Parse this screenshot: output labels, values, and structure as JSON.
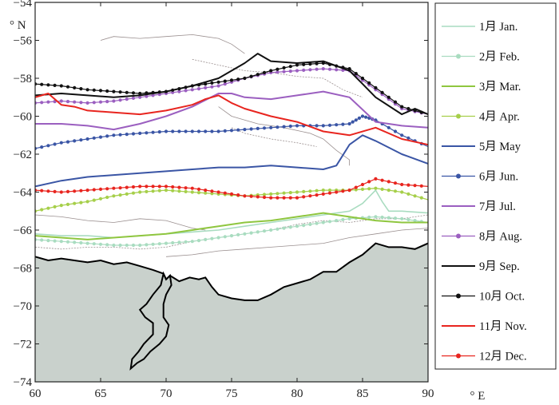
{
  "chart_data": {
    "type": "line",
    "title": "",
    "x_unit": "° E",
    "y_unit": "° N",
    "xlim": [
      60,
      90
    ],
    "ylim": [
      -74,
      -54
    ],
    "x_ticks": [
      "60",
      "65",
      "70",
      "75",
      "80",
      "85",
      "90"
    ],
    "y_ticks": [
      "-54",
      "-56",
      "-58",
      "-60",
      "-62",
      "-64",
      "-66",
      "-68",
      "-70",
      "-72",
      "-74"
    ],
    "legend_position": "right",
    "land_color": "#c9d1cc",
    "coast_color": "#000000",
    "series": [
      {
        "name": "1月 Jan.",
        "color": "#a9dcc0",
        "marker": false,
        "width": 1.6,
        "x": [
          60,
          62,
          64,
          66,
          68,
          70,
          72,
          74,
          76,
          78,
          80,
          82,
          84,
          85,
          86,
          86.5,
          87,
          88,
          90
        ],
        "y": [
          -66.2,
          -66.3,
          -66.3,
          -66.4,
          -66.3,
          -66.2,
          -66.1,
          -66.0,
          -65.8,
          -65.6,
          -65.4,
          -65.2,
          -65.0,
          -64.6,
          -63.9,
          -64.5,
          -65.0,
          -65.0,
          -65.1
        ]
      },
      {
        "name": "2月 Feb.",
        "color": "#a9dcc0",
        "marker": true,
        "width": 1.2,
        "x": [
          60,
          62,
          64,
          66,
          68,
          70,
          72,
          74,
          76,
          78,
          80,
          82,
          84,
          86,
          88,
          90
        ],
        "y": [
          -66.5,
          -66.6,
          -66.7,
          -66.8,
          -66.8,
          -66.7,
          -66.6,
          -66.4,
          -66.2,
          -66.0,
          -65.8,
          -65.6,
          -65.4,
          -65.3,
          -65.4,
          -65.6
        ]
      },
      {
        "name": "3月 Mar.",
        "color": "#8fc63f",
        "marker": false,
        "width": 2,
        "x": [
          60,
          62,
          64,
          66,
          68,
          70,
          72,
          74,
          76,
          78,
          80,
          82,
          84,
          86,
          88,
          90
        ],
        "y": [
          -66.3,
          -66.4,
          -66.5,
          -66.4,
          -66.3,
          -66.2,
          -66.0,
          -65.8,
          -65.6,
          -65.5,
          -65.3,
          -65.1,
          -65.3,
          -65.5,
          -65.6,
          -65.6
        ]
      },
      {
        "name": "4月 Apr.",
        "color": "#a6cf4a",
        "marker": true,
        "width": 1.3,
        "x": [
          60,
          62,
          64,
          66,
          68,
          70,
          72,
          74,
          76,
          78,
          80,
          82,
          84,
          86,
          88,
          90
        ],
        "y": [
          -65.0,
          -64.7,
          -64.5,
          -64.2,
          -64.0,
          -63.9,
          -64.0,
          -64.1,
          -64.2,
          -64.1,
          -64.0,
          -63.9,
          -63.9,
          -63.8,
          -64.0,
          -64.4
        ]
      },
      {
        "name": "5月 May",
        "color": "#3a55a5",
        "marker": false,
        "width": 2,
        "x": [
          60,
          62,
          64,
          66,
          68,
          70,
          72,
          74,
          76,
          78,
          80,
          82,
          83,
          84,
          85,
          86,
          88,
          90
        ],
        "y": [
          -63.7,
          -63.4,
          -63.2,
          -63.1,
          -63.0,
          -62.9,
          -62.8,
          -62.7,
          -62.7,
          -62.6,
          -62.7,
          -62.8,
          -62.6,
          -61.5,
          -61.0,
          -61.3,
          -62.0,
          -62.5
        ]
      },
      {
        "name": "6月 Jun.",
        "color": "#3a55a5",
        "marker": true,
        "width": 1.2,
        "x": [
          60,
          62,
          64,
          66,
          68,
          70,
          72,
          74,
          76,
          78,
          80,
          82,
          84,
          85,
          86,
          88,
          90
        ],
        "y": [
          -61.7,
          -61.4,
          -61.2,
          -61.0,
          -60.9,
          -60.8,
          -60.8,
          -60.8,
          -60.7,
          -60.6,
          -60.5,
          -60.5,
          -60.4,
          -60.0,
          -60.2,
          -61.0,
          -61.6
        ]
      },
      {
        "name": "7月 Jul.",
        "color": "#9b5fc0",
        "marker": false,
        "width": 2,
        "x": [
          60,
          62,
          64,
          66,
          68,
          70,
          72,
          74,
          75,
          76,
          78,
          80,
          82,
          84,
          86,
          88,
          90
        ],
        "y": [
          -60.4,
          -60.4,
          -60.5,
          -60.7,
          -60.4,
          -60.0,
          -59.5,
          -58.8,
          -58.8,
          -59.0,
          -59.1,
          -58.9,
          -58.7,
          -59.0,
          -60.3,
          -60.5,
          -60.6
        ]
      },
      {
        "name": "8月 Aug.",
        "color": "#9b5fc0",
        "marker": true,
        "width": 1.2,
        "x": [
          60,
          62,
          64,
          66,
          68,
          70,
          72,
          74,
          76,
          78,
          80,
          82,
          84,
          86,
          88,
          90
        ],
        "y": [
          -59.3,
          -59.2,
          -59.3,
          -59.2,
          -59.0,
          -58.8,
          -58.6,
          -58.4,
          -58.0,
          -57.7,
          -57.6,
          -57.5,
          -57.6,
          -58.6,
          -59.6,
          -59.9
        ]
      },
      {
        "name": "9月 Sep.",
        "color": "#111111",
        "marker": false,
        "width": 2,
        "x": [
          60,
          62,
          64,
          66,
          68,
          70,
          72,
          74,
          75,
          76,
          77,
          78,
          80,
          82,
          84,
          85,
          86,
          88,
          89,
          90
        ],
        "y": [
          -58.9,
          -58.8,
          -58.9,
          -59.0,
          -58.9,
          -58.7,
          -58.4,
          -58.0,
          -57.6,
          -57.2,
          -56.7,
          -57.1,
          -57.2,
          -57.1,
          -57.6,
          -58.3,
          -59.0,
          -59.9,
          -59.6,
          -59.9
        ]
      },
      {
        "name": "10月 Oct.",
        "color": "#111111",
        "marker": true,
        "width": 1.2,
        "x": [
          60,
          62,
          64,
          66,
          68,
          70,
          72,
          74,
          76,
          78,
          80,
          82,
          84,
          86,
          88,
          90
        ],
        "y": [
          -58.3,
          -58.4,
          -58.6,
          -58.7,
          -58.8,
          -58.7,
          -58.4,
          -58.2,
          -58.0,
          -57.6,
          -57.3,
          -57.2,
          -57.5,
          -58.5,
          -59.5,
          -59.9
        ]
      },
      {
        "name": "11月 Nov.",
        "color": "#e8251f",
        "marker": false,
        "width": 2,
        "x": [
          60,
          61,
          62,
          63,
          64,
          66,
          68,
          70,
          72,
          73,
          74,
          75,
          76,
          78,
          80,
          82,
          84,
          86,
          88,
          90
        ],
        "y": [
          -59.0,
          -58.8,
          -59.4,
          -59.5,
          -59.7,
          -59.8,
          -59.9,
          -59.7,
          -59.4,
          -59.1,
          -58.9,
          -59.3,
          -59.6,
          -60.0,
          -60.3,
          -60.8,
          -61.0,
          -60.6,
          -61.2,
          -61.5
        ]
      },
      {
        "name": "12月 Dec.",
        "color": "#e8251f",
        "marker": true,
        "width": 1.2,
        "x": [
          60,
          62,
          64,
          66,
          68,
          70,
          72,
          74,
          76,
          78,
          80,
          82,
          84,
          86,
          88,
          90
        ],
        "y": [
          -63.9,
          -64.0,
          -63.9,
          -63.8,
          -63.7,
          -63.7,
          -63.8,
          -64.0,
          -64.2,
          -64.3,
          -64.3,
          -64.1,
          -63.9,
          -63.3,
          -63.6,
          -63.7
        ]
      }
    ],
    "coastline": {
      "x": [
        60,
        61,
        62,
        63,
        64,
        65,
        66,
        67,
        68,
        69,
        69.8,
        70,
        70.3,
        71,
        71.8,
        72.5,
        73,
        73.5,
        74,
        75,
        76,
        77,
        78,
        79,
        80,
        81,
        82,
        83,
        84,
        85,
        86,
        87,
        88,
        89,
        90
      ],
      "y": [
        -67.4,
        -67.6,
        -67.5,
        -67.6,
        -67.7,
        -67.6,
        -67.8,
        -67.7,
        -67.9,
        -68.1,
        -68.3,
        -68.6,
        -68.4,
        -68.7,
        -68.5,
        -68.6,
        -68.5,
        -69.0,
        -69.4,
        -69.6,
        -69.7,
        -69.7,
        -69.4,
        -69.0,
        -68.8,
        -68.6,
        -68.2,
        -68.2,
        -67.7,
        -67.3,
        -66.7,
        -66.9,
        -66.9,
        -67.0,
        -66.7
      ]
    },
    "land_tongue": {
      "x": [
        69.8,
        70.0,
        70.3,
        70.4,
        70.0,
        69.8,
        69.8,
        70.2,
        70.0,
        69.5,
        68.8,
        68.3,
        67.8,
        67.3,
        67.4,
        67.9,
        68.3,
        69.0,
        69.0,
        68.4,
        68.0,
        68.5,
        69.0,
        69.6
      ],
      "y": [
        -68.3,
        -68.6,
        -68.4,
        -68.9,
        -69.4,
        -69.9,
        -70.6,
        -71.0,
        -71.6,
        -72.0,
        -72.4,
        -72.8,
        -73.0,
        -73.3,
        -72.8,
        -72.4,
        -72.0,
        -71.5,
        -70.9,
        -70.6,
        -70.2,
        -69.9,
        -69.4,
        -68.9
      ]
    },
    "bathymetry_contours": [
      {
        "x": [
          65,
          66,
          68,
          70,
          72,
          74,
          75,
          76
        ],
        "y": [
          -56.0,
          -55.8,
          -55.9,
          -55.8,
          -55.7,
          -55.9,
          -56.2,
          -56.7
        ]
      },
      {
        "x": [
          72,
          74,
          76,
          78,
          80,
          82,
          83.5,
          85
        ],
        "y": [
          -57.0,
          -57.3,
          -57.6,
          -57.7,
          -57.9,
          -58.0,
          -58.6,
          -59.0
        ]
      },
      {
        "x": [
          74,
          75,
          77,
          79,
          81,
          82,
          83,
          84,
          84
        ],
        "y": [
          -59.5,
          -60.0,
          -60.4,
          -60.6,
          -60.9,
          -61.2,
          -61.8,
          -62.3,
          -62.6
        ]
      },
      {
        "x": [
          75,
          76,
          78,
          80,
          81.5
        ],
        "y": [
          -60.6,
          -60.9,
          -61.2,
          -61.4,
          -61.6
        ]
      },
      {
        "x": [
          60,
          62,
          64,
          66,
          68,
          70,
          72,
          73
        ],
        "y": [
          -65.2,
          -65.3,
          -65.5,
          -65.6,
          -65.4,
          -65.5,
          -65.9,
          -66.0
        ]
      },
      {
        "x": [
          60,
          62,
          64,
          66,
          68,
          70,
          72,
          74,
          76,
          78,
          80,
          82,
          84,
          86,
          88,
          90
        ],
        "y": [
          -66.9,
          -67.0,
          -66.9,
          -66.9,
          -67.0,
          -66.9,
          -66.6,
          -66.4,
          -66.2,
          -66.0,
          -65.7,
          -65.5,
          -65.6,
          -65.4,
          -65.4,
          -65.2
        ]
      },
      {
        "x": [
          70,
          72,
          74,
          76,
          78,
          80,
          82,
          84,
          86,
          88,
          90
        ],
        "y": [
          -67.4,
          -67.3,
          -67.1,
          -67.0,
          -66.9,
          -66.8,
          -66.7,
          -66.4,
          -66.2,
          -66.0,
          -65.9
        ]
      }
    ]
  }
}
